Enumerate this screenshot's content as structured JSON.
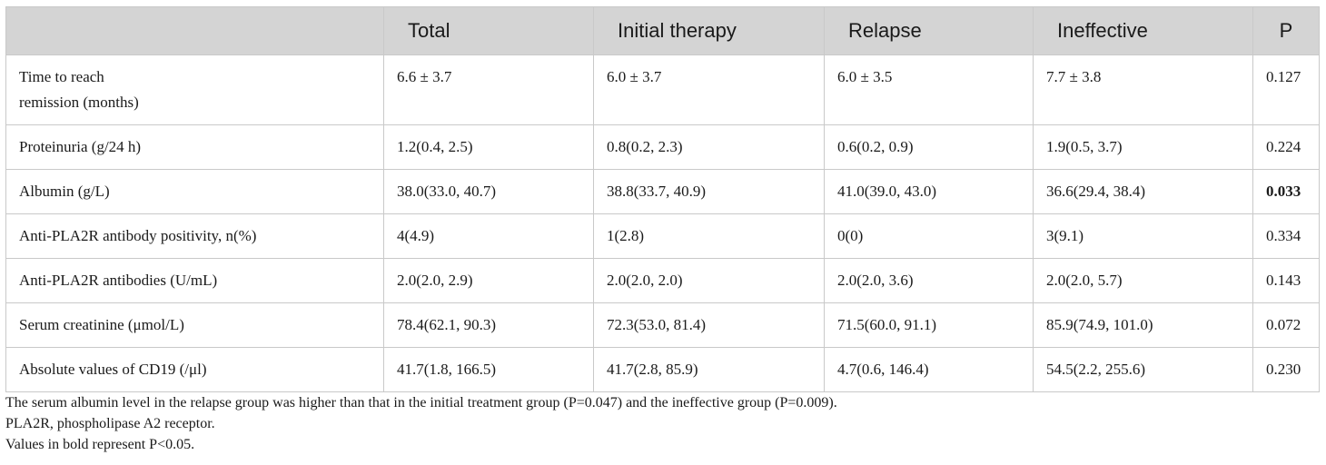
{
  "table": {
    "headers": [
      "",
      "Total",
      "Initial therapy",
      "Relapse",
      "Ineffective",
      "P"
    ],
    "rows": [
      {
        "label": "Time to reach\nremission (months)",
        "label_line1": "Time to reach",
        "label_line2": "remission (months)",
        "cells": [
          "6.6 ± 3.7",
          "6.0 ± 3.7",
          "6.0 ± 3.5",
          "7.7 ± 3.8"
        ],
        "p": "0.127",
        "p_bold": false
      },
      {
        "label": "Proteinuria (g/24 h)",
        "cells": [
          "1.2(0.4, 2.5)",
          "0.8(0.2, 2.3)",
          "0.6(0.2, 0.9)",
          "1.9(0.5, 3.7)"
        ],
        "p": "0.224",
        "p_bold": false
      },
      {
        "label": "Albumin (g/L)",
        "cells": [
          "38.0(33.0, 40.7)",
          "38.8(33.7, 40.9)",
          "41.0(39.0, 43.0)",
          "36.6(29.4, 38.4)"
        ],
        "p": "0.033",
        "p_bold": true
      },
      {
        "label": "Anti-PLA2R antibody positivity, n(%)",
        "cells": [
          "4(4.9)",
          "1(2.8)",
          "0(0)",
          "3(9.1)"
        ],
        "p": "0.334",
        "p_bold": false
      },
      {
        "label": "Anti-PLA2R antibodies (U/mL)",
        "cells": [
          "2.0(2.0, 2.9)",
          "2.0(2.0, 2.0)",
          "2.0(2.0, 3.6)",
          "2.0(2.0, 5.7)"
        ],
        "p": "0.143",
        "p_bold": false
      },
      {
        "label": "Serum creatinine (μmol/L)",
        "cells": [
          "78.4(62.1, 90.3)",
          "72.3(53.0, 81.4)",
          "71.5(60.0, 91.1)",
          "85.9(74.9, 101.0)"
        ],
        "p": "0.072",
        "p_bold": false
      },
      {
        "label": "Absolute values of CD19 (/μl)",
        "cells": [
          "41.7(1.8, 166.5)",
          "41.7(2.8, 85.9)",
          "4.7(0.6, 146.4)",
          "54.5(2.2, 255.6)"
        ],
        "p": "0.230",
        "p_bold": false
      }
    ]
  },
  "notes": [
    "The serum albumin level in the relapse group was higher than that in the initial treatment group (P=0.047) and the ineffective group (P=0.009).",
    "PLA2R, phospholipase A2 receptor.",
    "Values in bold represent P<0.05."
  ],
  "colors": {
    "header_bg": "#d4d4d4",
    "border": "#c9c9c9",
    "text": "#1a1a1a"
  }
}
